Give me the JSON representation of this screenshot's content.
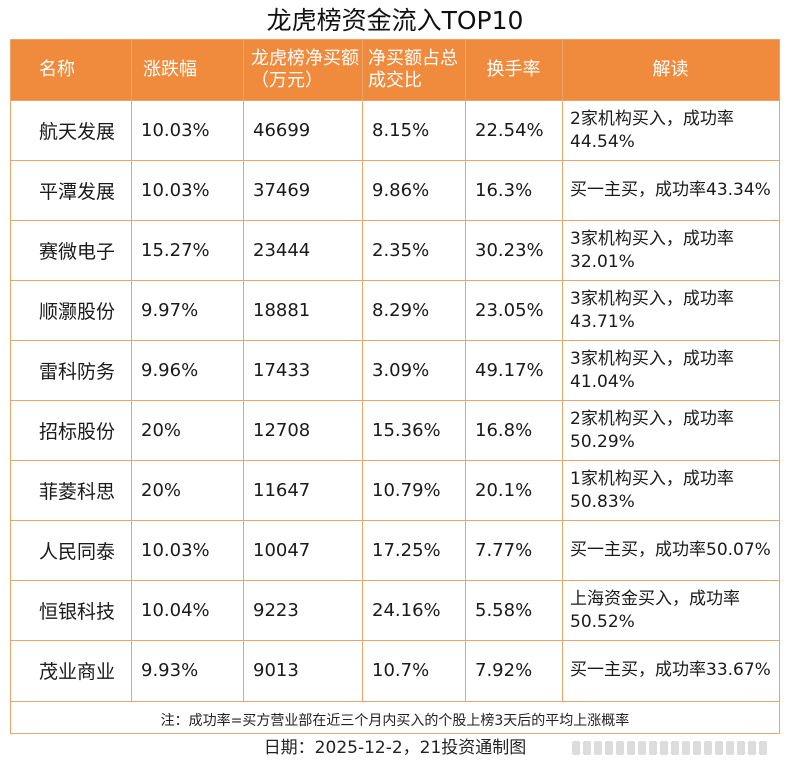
{
  "title": "龙虎榜资金流入TOP10",
  "table": {
    "headers": [
      "名称",
      "涨跌幅",
      "龙虎榜净买额（万元）",
      "净买额占总成交比",
      "换手率",
      "解读"
    ],
    "rows": [
      {
        "name": "航天发展",
        "change": "10.03%",
        "net_buy": "46699",
        "ratio": "8.15%",
        "turnover": "22.54%",
        "interp": "2家机构买入，成功率44.54%"
      },
      {
        "name": "平潭发展",
        "change": "10.03%",
        "net_buy": "37469",
        "ratio": "9.86%",
        "turnover": "16.3%",
        "interp": "买一主买，成功率43.34%"
      },
      {
        "name": "赛微电子",
        "change": "15.27%",
        "net_buy": "23444",
        "ratio": "2.35%",
        "turnover": "30.23%",
        "interp": "3家机构买入，成功率32.01%"
      },
      {
        "name": "顺灏股份",
        "change": "9.97%",
        "net_buy": "18881",
        "ratio": "8.29%",
        "turnover": "23.05%",
        "interp": "3家机构买入，成功率43.71%"
      },
      {
        "name": "雷科防务",
        "change": "9.96%",
        "net_buy": "17433",
        "ratio": "3.09%",
        "turnover": "49.17%",
        "interp": "3家机构买入，成功率41.04%"
      },
      {
        "name": "招标股份",
        "change": "20%",
        "net_buy": "12708",
        "ratio": "15.36%",
        "turnover": "16.8%",
        "interp": "2家机构买入，成功率50.29%"
      },
      {
        "name": "菲菱科思",
        "change": "20%",
        "net_buy": "11647",
        "ratio": "10.79%",
        "turnover": "20.1%",
        "interp": "1家机构买入，成功率50.83%"
      },
      {
        "name": "人民同泰",
        "change": "10.03%",
        "net_buy": "10047",
        "ratio": "17.25%",
        "turnover": "7.77%",
        "interp": "买一主买，成功率50.07%"
      },
      {
        "name": "恒银科技",
        "change": "10.04%",
        "net_buy": "9223",
        "ratio": "24.16%",
        "turnover": "5.58%",
        "interp": "上海资金买入，成功率50.52%"
      },
      {
        "name": "茂业商业",
        "change": "9.93%",
        "net_buy": "9013",
        "ratio": "10.7%",
        "turnover": "7.92%",
        "interp": "买一主买，成功率33.67%"
      }
    ]
  },
  "note": "注：成功率=买方营业部在近三个月内买入的个股上榜3天后的平均上涨概率",
  "date_line": "日期：2025-12-2，21投资通制图",
  "colors": {
    "header_bg": "#f08a3c",
    "grid": "#e8a66d"
  }
}
